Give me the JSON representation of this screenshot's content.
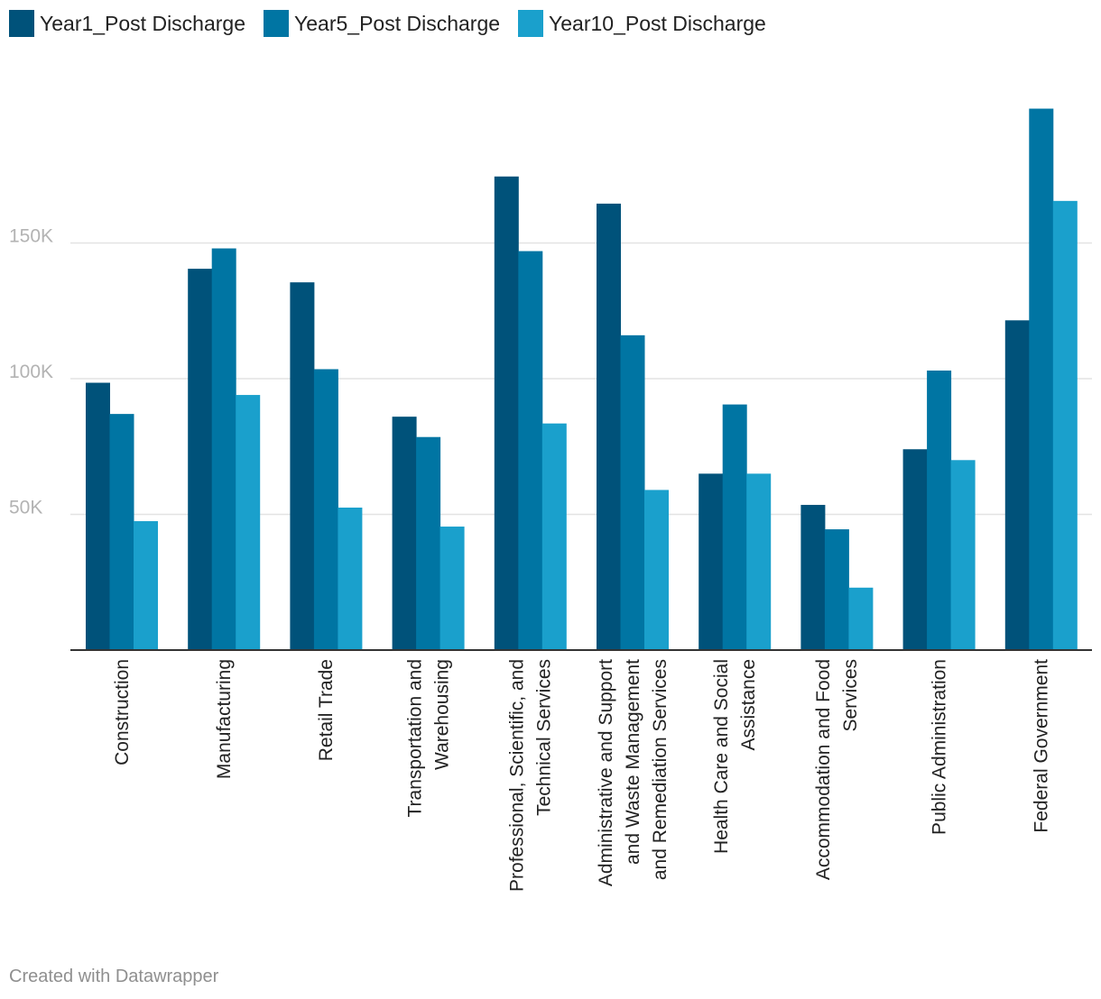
{
  "chart_data": {
    "type": "bar",
    "title": "",
    "xlabel": "",
    "ylabel": "",
    "ylim": [
      0,
      200000
    ],
    "yticks": [
      {
        "value": 50000,
        "label": "50K"
      },
      {
        "value": 100000,
        "label": "100K"
      },
      {
        "value": 150000,
        "label": "150K"
      }
    ],
    "grid": true,
    "legend_position": "top-left",
    "categories": [
      [
        "Construction"
      ],
      [
        "Manufacturing"
      ],
      [
        "Retail Trade"
      ],
      [
        "Transportation and",
        "Warehousing"
      ],
      [
        "Professional, Scientific, and",
        "Technical Services"
      ],
      [
        "Administrative and Support",
        "and Waste Management",
        "and Remediation Services"
      ],
      [
        "Health Care and Social",
        "Assistance"
      ],
      [
        "Accommodation and Food",
        "Services"
      ],
      [
        "Public Administration"
      ],
      [
        "Federal Government"
      ]
    ],
    "series": [
      {
        "name": "Year1_Post Discharge",
        "color": "#00527a",
        "values": [
          98500,
          140500,
          135500,
          86000,
          174500,
          164500,
          65000,
          53500,
          74000,
          121500
        ]
      },
      {
        "name": "Year5_Post Discharge",
        "color": "#0075a3",
        "values": [
          87000,
          148000,
          103500,
          78500,
          147000,
          116000,
          90500,
          44500,
          103000,
          199500
        ]
      },
      {
        "name": "Year10_Post Discharge",
        "color": "#1aa0cc",
        "values": [
          47500,
          94000,
          52500,
          45500,
          83500,
          59000,
          65000,
          23000,
          70000,
          165500
        ]
      }
    ]
  },
  "footer": {
    "credit": "Created with Datawrapper"
  }
}
